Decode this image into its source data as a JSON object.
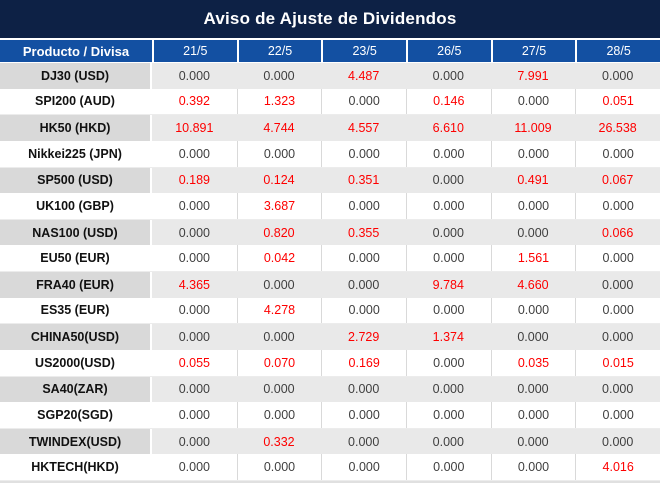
{
  "title": "Aviso de Ajuste de Dividendos",
  "colors": {
    "title_bg": "#0d2145",
    "header_bg": "#1350a2",
    "header_text": "#ffffff",
    "stripe_product_bg": "#d9d9d9",
    "stripe_value_bg": "#e9e9e9",
    "plain_bg": "#ffffff",
    "nonzero_red": "#fe0000",
    "zero_text": "#3f3f3f",
    "product_text": "#111111",
    "grid_line": "#d9d9d9"
  },
  "table": {
    "header": [
      "Producto / Divisa",
      "21/5",
      "22/5",
      "23/5",
      "26/5",
      "27/5",
      "28/5"
    ],
    "rows": [
      {
        "product": "DJ30 (USD)",
        "values": [
          "0.000",
          "0.000",
          "4.487",
          "0.000",
          "7.991",
          "0.000"
        ]
      },
      {
        "product": "SPI200 (AUD)",
        "values": [
          "0.392",
          "1.323",
          "0.000",
          "0.146",
          "0.000",
          "0.051"
        ]
      },
      {
        "product": "HK50 (HKD)",
        "values": [
          "10.891",
          "4.744",
          "4.557",
          "6.610",
          "11.009",
          "26.538"
        ]
      },
      {
        "product": "Nikkei225 (JPN)",
        "values": [
          "0.000",
          "0.000",
          "0.000",
          "0.000",
          "0.000",
          "0.000"
        ]
      },
      {
        "product": "SP500 (USD)",
        "values": [
          "0.189",
          "0.124",
          "0.351",
          "0.000",
          "0.491",
          "0.067"
        ]
      },
      {
        "product": "UK100 (GBP)",
        "values": [
          "0.000",
          "3.687",
          "0.000",
          "0.000",
          "0.000",
          "0.000"
        ]
      },
      {
        "product": "NAS100 (USD)",
        "values": [
          "0.000",
          "0.820",
          "0.355",
          "0.000",
          "0.000",
          "0.066"
        ]
      },
      {
        "product": "EU50 (EUR)",
        "values": [
          "0.000",
          "0.042",
          "0.000",
          "0.000",
          "1.561",
          "0.000"
        ]
      },
      {
        "product": "FRA40 (EUR)",
        "values": [
          "4.365",
          "0.000",
          "0.000",
          "9.784",
          "4.660",
          "0.000"
        ]
      },
      {
        "product": "ES35 (EUR)",
        "values": [
          "0.000",
          "4.278",
          "0.000",
          "0.000",
          "0.000",
          "0.000"
        ]
      },
      {
        "product": "CHINA50(USD)",
        "values": [
          "0.000",
          "0.000",
          "2.729",
          "1.374",
          "0.000",
          "0.000"
        ]
      },
      {
        "product": "US2000(USD)",
        "values": [
          "0.055",
          "0.070",
          "0.169",
          "0.000",
          "0.035",
          "0.015"
        ]
      },
      {
        "product": "SA40(ZAR)",
        "values": [
          "0.000",
          "0.000",
          "0.000",
          "0.000",
          "0.000",
          "0.000"
        ]
      },
      {
        "product": "SGP20(SGD)",
        "values": [
          "0.000",
          "0.000",
          "0.000",
          "0.000",
          "0.000",
          "0.000"
        ]
      },
      {
        "product": "TWINDEX(USD)",
        "values": [
          "0.000",
          "0.332",
          "0.000",
          "0.000",
          "0.000",
          "0.000"
        ]
      },
      {
        "product": "HKTECH(HKD)",
        "values": [
          "0.000",
          "0.000",
          "0.000",
          "0.000",
          "0.000",
          "4.016"
        ]
      }
    ]
  },
  "chart_data": {
    "type": "table",
    "title": "Aviso de Ajuste de Dividendos",
    "categories": [
      "21/5",
      "22/5",
      "23/5",
      "26/5",
      "27/5",
      "28/5"
    ],
    "row_label_header": "Producto / Divisa",
    "series": [
      {
        "name": "DJ30 (USD)",
        "values": [
          0.0,
          0.0,
          4.487,
          0.0,
          7.991,
          0.0
        ]
      },
      {
        "name": "SPI200 (AUD)",
        "values": [
          0.392,
          1.323,
          0.0,
          0.146,
          0.0,
          0.051
        ]
      },
      {
        "name": "HK50 (HKD)",
        "values": [
          10.891,
          4.744,
          4.557,
          6.61,
          11.009,
          26.538
        ]
      },
      {
        "name": "Nikkei225 (JPN)",
        "values": [
          0.0,
          0.0,
          0.0,
          0.0,
          0.0,
          0.0
        ]
      },
      {
        "name": "SP500 (USD)",
        "values": [
          0.189,
          0.124,
          0.351,
          0.0,
          0.491,
          0.067
        ]
      },
      {
        "name": "UK100 (GBP)",
        "values": [
          0.0,
          3.687,
          0.0,
          0.0,
          0.0,
          0.0
        ]
      },
      {
        "name": "NAS100 (USD)",
        "values": [
          0.0,
          0.82,
          0.355,
          0.0,
          0.0,
          0.066
        ]
      },
      {
        "name": "EU50 (EUR)",
        "values": [
          0.0,
          0.042,
          0.0,
          0.0,
          1.561,
          0.0
        ]
      },
      {
        "name": "FRA40 (EUR)",
        "values": [
          4.365,
          0.0,
          0.0,
          9.784,
          4.66,
          0.0
        ]
      },
      {
        "name": "ES35 (EUR)",
        "values": [
          0.0,
          4.278,
          0.0,
          0.0,
          0.0,
          0.0
        ]
      },
      {
        "name": "CHINA50(USD)",
        "values": [
          0.0,
          0.0,
          2.729,
          1.374,
          0.0,
          0.0
        ]
      },
      {
        "name": "US2000(USD)",
        "values": [
          0.055,
          0.07,
          0.169,
          0.0,
          0.035,
          0.015
        ]
      },
      {
        "name": "SA40(ZAR)",
        "values": [
          0.0,
          0.0,
          0.0,
          0.0,
          0.0,
          0.0
        ]
      },
      {
        "name": "SGP20(SGD)",
        "values": [
          0.0,
          0.0,
          0.0,
          0.0,
          0.0,
          0.0
        ]
      },
      {
        "name": "TWINDEX(USD)",
        "values": [
          0.0,
          0.332,
          0.0,
          0.0,
          0.0,
          0.0
        ]
      },
      {
        "name": "HKTECH(HKD)",
        "values": [
          0.0,
          0.0,
          0.0,
          0.0,
          0.0,
          4.016
        ]
      }
    ],
    "value_color_rule": "red if value != 0 else dark gray",
    "layout": "striped rows; first column product labels; grid off except light cell separators"
  }
}
